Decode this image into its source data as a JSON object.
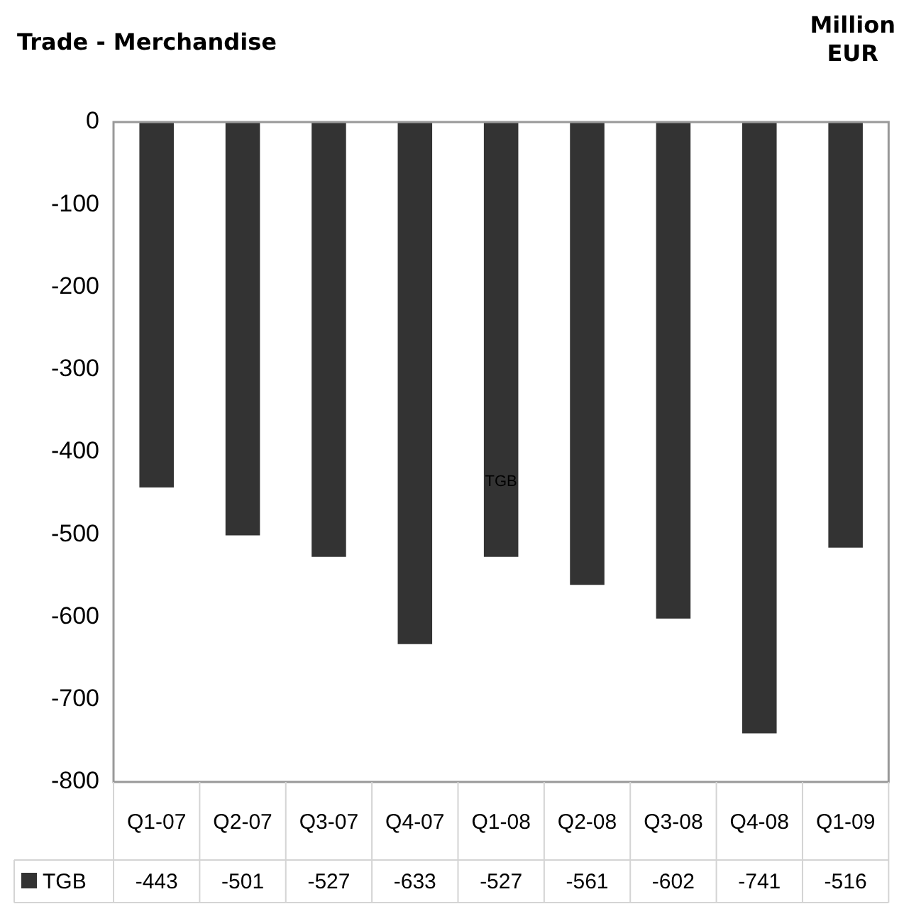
{
  "chart_data": {
    "type": "bar",
    "title": "Trade - Merchandise",
    "ylabel": "Million EUR",
    "categories": [
      "Q1-07",
      "Q2-07",
      "Q3-07",
      "Q4-07",
      "Q1-08",
      "Q2-08",
      "Q3-08",
      "Q4-08",
      "Q1-09"
    ],
    "series": [
      {
        "name": "TGB",
        "color": "#333333",
        "values": [
          -443,
          -501,
          -527,
          -633,
          -527,
          -561,
          -602,
          -741,
          -516
        ]
      }
    ],
    "ylim": [
      -800,
      0
    ],
    "yticks": [
      -800,
      -700,
      -600,
      -500,
      -400,
      -300,
      -200,
      -100,
      0
    ],
    "grid": false,
    "legend": "bottom",
    "data_labels": true,
    "annotations": [
      "TGB"
    ]
  }
}
